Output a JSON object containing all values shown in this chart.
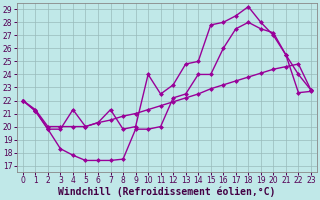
{
  "xlabel": "Windchill (Refroidissement éolien,°C)",
  "bg_color": "#c0e8e8",
  "line_color": "#990099",
  "grid_color": "#99bbbb",
  "xlim": [
    -0.5,
    23.5
  ],
  "ylim": [
    16.5,
    29.5
  ],
  "xticks": [
    0,
    1,
    2,
    3,
    4,
    5,
    6,
    7,
    8,
    9,
    10,
    11,
    12,
    13,
    14,
    15,
    16,
    17,
    18,
    19,
    20,
    21,
    22,
    23
  ],
  "yticks": [
    17,
    18,
    19,
    20,
    21,
    22,
    23,
    24,
    25,
    26,
    27,
    28,
    29
  ],
  "line1_x": [
    0,
    1,
    2,
    3,
    4,
    5,
    6,
    7,
    8,
    9,
    10,
    11,
    12,
    13,
    14,
    15,
    16,
    17,
    18,
    19,
    20,
    21,
    22,
    23
  ],
  "line1_y": [
    22.0,
    21.2,
    19.8,
    18.3,
    17.8,
    17.4,
    17.4,
    17.4,
    17.5,
    19.8,
    19.8,
    20.0,
    22.2,
    22.5,
    24.0,
    24.0,
    26.0,
    27.5,
    28.0,
    27.5,
    27.2,
    25.5,
    24.0,
    22.8
  ],
  "line2_x": [
    0,
    1,
    2,
    3,
    4,
    5,
    6,
    7,
    8,
    9,
    10,
    11,
    12,
    13,
    14,
    15,
    16,
    17,
    18,
    19,
    20,
    21,
    22,
    23
  ],
  "line2_y": [
    22.0,
    21.3,
    20.0,
    20.0,
    20.0,
    20.0,
    20.3,
    20.5,
    20.8,
    21.0,
    21.3,
    21.6,
    21.9,
    22.2,
    22.5,
    22.9,
    23.2,
    23.5,
    23.8,
    24.1,
    24.4,
    24.6,
    24.8,
    22.8
  ],
  "line3_x": [
    0,
    1,
    2,
    3,
    4,
    5,
    6,
    7,
    8,
    9,
    10,
    11,
    12,
    13,
    14,
    15,
    16,
    17,
    18,
    19,
    20,
    21,
    22,
    23
  ],
  "line3_y": [
    22.0,
    21.2,
    19.8,
    19.8,
    21.3,
    20.0,
    20.3,
    21.3,
    19.8,
    20.0,
    24.0,
    22.5,
    23.2,
    24.8,
    25.0,
    27.8,
    28.0,
    28.5,
    29.2,
    28.0,
    27.0,
    25.5,
    22.6,
    22.7
  ],
  "marker": "D",
  "markersize": 2.5,
  "linewidth": 1.0,
  "tick_fontsize": 5.5,
  "label_fontsize": 7.0
}
